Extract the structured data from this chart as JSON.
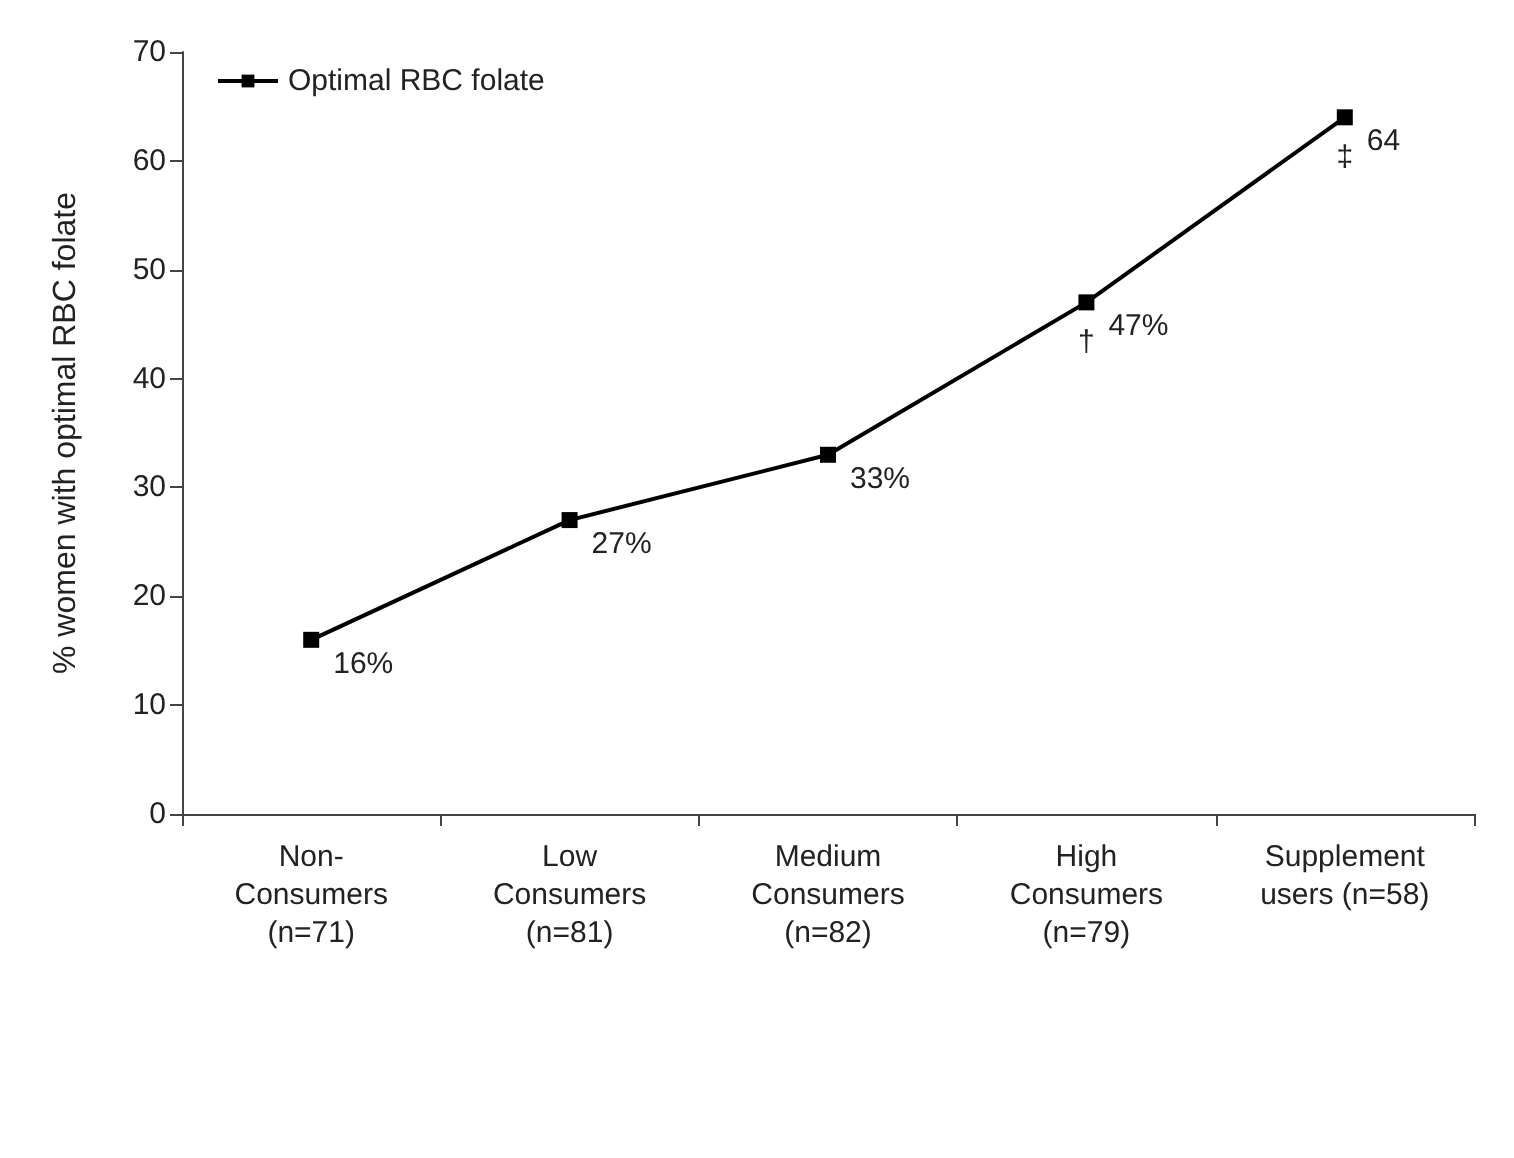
{
  "chart_data": {
    "type": "line",
    "ylabel": "% women with optimal RBC folate",
    "categories": [
      "Non-\nConsumers\n(n=71)",
      "Low\nConsumers\n(n=81)",
      "Medium\nConsumers\n(n=82)",
      "High\nConsumers\n(n=79)",
      "Supplement\nusers (n=58)"
    ],
    "series": [
      {
        "name": "Optimal RBC folate",
        "color": "#000000",
        "values": [
          16,
          27,
          33,
          47,
          64
        ],
        "value_labels": [
          "16%",
          "27%",
          "33%",
          "47%",
          "64"
        ]
      }
    ],
    "ylim": [
      0,
      70
    ],
    "yticks": [
      0,
      10,
      20,
      30,
      40,
      50,
      60,
      70
    ],
    "annotations": [
      {
        "text": "†",
        "x": "High\nConsumers\n(n=79)",
        "y": 47
      },
      {
        "text": "‡",
        "x": "Supplement\nusers (n=58)",
        "y": 64
      }
    ],
    "legend": "top left",
    "marker": "square",
    "line_style": "solid",
    "grid": false
  }
}
